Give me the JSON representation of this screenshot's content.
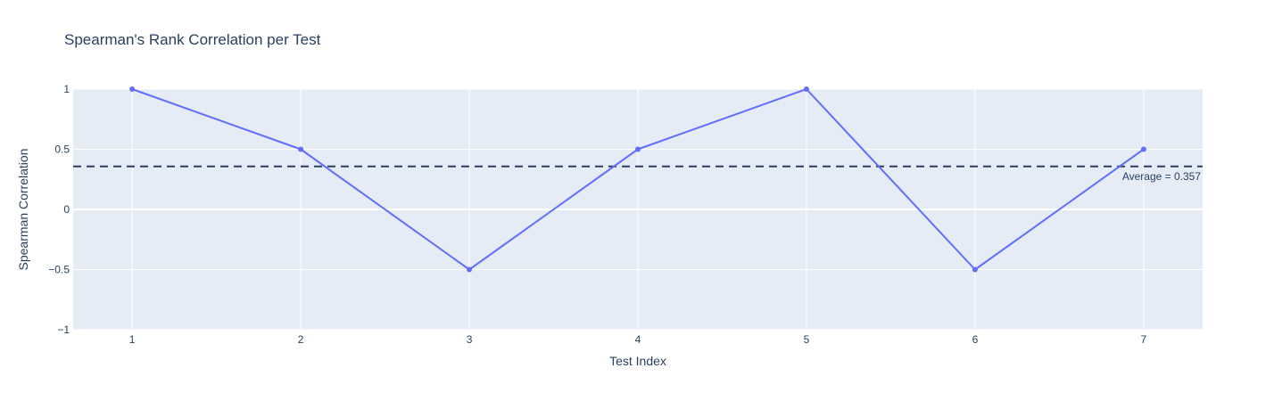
{
  "chart_data": {
    "type": "line",
    "title": "Spearman's Rank Correlation per Test",
    "xlabel": "Test Index",
    "ylabel": "Spearman Correlation",
    "x": [
      1,
      2,
      3,
      4,
      5,
      6,
      7
    ],
    "series": [
      {
        "values": [
          1,
          0.5,
          -0.5,
          0.5,
          1,
          -0.5,
          0.5
        ]
      }
    ],
    "xlim": [
      0.65,
      7.35
    ],
    "ylim": [
      -1,
      1
    ],
    "x_ticks": [
      "1",
      "2",
      "3",
      "4",
      "5",
      "6",
      "7"
    ],
    "y_ticks": [
      {
        "value": 1,
        "label": "1"
      },
      {
        "value": 0.5,
        "label": "0.5"
      },
      {
        "value": 0,
        "label": "0"
      },
      {
        "value": -0.5,
        "label": "−0.5"
      },
      {
        "value": -1,
        "label": "−1"
      }
    ],
    "reference_line": {
      "value": 0.357,
      "style": "dashed",
      "label": "Average = 0.357"
    },
    "grid": true,
    "colors": {
      "line": "#636efa",
      "plot_bg": "#e5ecf6",
      "grid": "#ffffff",
      "reference_line": "#2a3f5f",
      "text": "#2a3f5f"
    }
  }
}
